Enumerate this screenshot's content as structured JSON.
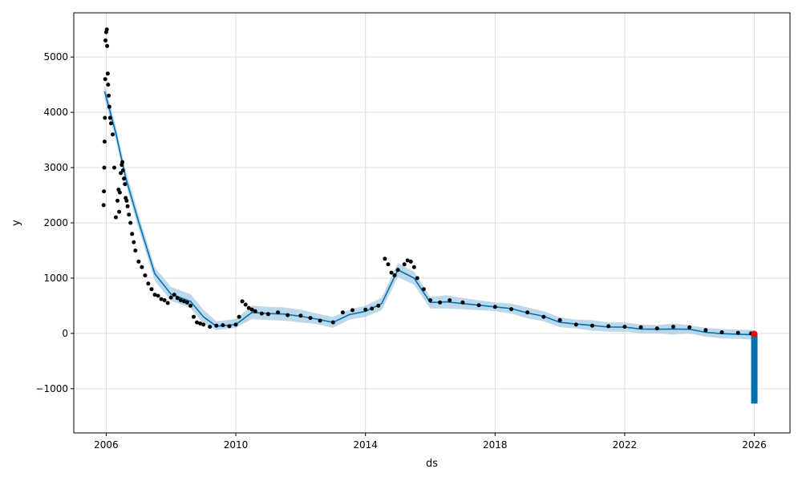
{
  "chart_data": {
    "type": "scatter",
    "title": "",
    "xlabel": "ds",
    "ylabel": "y",
    "xlim": [
      2005.0,
      2027.1
    ],
    "ylim": [
      -1800,
      5800
    ],
    "xticks": [
      2006,
      2010,
      2014,
      2018,
      2022,
      2026
    ],
    "xtick_labels": [
      "2006",
      "2010",
      "2014",
      "2018",
      "2022",
      "2026"
    ],
    "yticks": [
      -1000,
      0,
      1000,
      2000,
      3000,
      4000,
      5000
    ],
    "ytick_labels": [
      "−1000",
      "0",
      "1000",
      "2000",
      "3000",
      "4000",
      "5000"
    ],
    "grid": true,
    "colors": {
      "observed": "#000000",
      "forecast_line": "#0072B2",
      "uncertainty_band": "#A6CBE3",
      "highlight": "#FF0000",
      "grid": "#DDDDDD"
    },
    "series": [
      {
        "kind": "uncertainty-band",
        "x": [
          2005.95,
          2006.3,
          2006.6,
          2007.0,
          2007.5,
          2008.0,
          2008.6,
          2009.0,
          2009.4,
          2010.0,
          2010.5,
          2011.0,
          2011.5,
          2012.0,
          2012.5,
          2013.0,
          2013.5,
          2014.0,
          2014.5,
          2015.0,
          2015.5,
          2016.0,
          2016.5,
          2017.0,
          2017.5,
          2018.0,
          2018.5,
          2019.0,
          2019.5,
          2020.0,
          2020.5,
          2021.0,
          2021.5,
          2022.0,
          2022.5,
          2023.0,
          2023.5,
          2024.0,
          2024.5,
          2025.0,
          2025.5,
          2026.0
        ],
        "lower": [
          4250,
          3500,
          2700,
          1900,
          950,
          590,
          460,
          180,
          60,
          100,
          260,
          240,
          230,
          200,
          170,
          100,
          250,
          300,
          420,
          1020,
          880,
          450,
          450,
          440,
          420,
          400,
          360,
          270,
          220,
          110,
          90,
          50,
          30,
          30,
          0,
          0,
          -20,
          0,
          -60,
          -90,
          -100,
          -110
        ],
        "upper": [
          4500,
          3750,
          2950,
          2150,
          1200,
          840,
          710,
          430,
          220,
          260,
          500,
          480,
          470,
          430,
          360,
          300,
          430,
          500,
          650,
          1270,
          1120,
          660,
          690,
          640,
          600,
          560,
          540,
          470,
          400,
          290,
          250,
          240,
          200,
          200,
          160,
          150,
          180,
          150,
          100,
          80,
          70,
          60
        ]
      },
      {
        "kind": "forecast-line",
        "x": [
          2005.95,
          2006.3,
          2006.6,
          2007.0,
          2007.5,
          2008.0,
          2008.6,
          2009.0,
          2009.4,
          2010.0,
          2010.5,
          2011.0,
          2011.5,
          2012.0,
          2012.5,
          2013.0,
          2013.5,
          2014.0,
          2014.5,
          2015.0,
          2015.5,
          2016.0,
          2016.5,
          2017.0,
          2017.5,
          2018.0,
          2018.5,
          2019.0,
          2019.5,
          2020.0,
          2020.5,
          2021.0,
          2021.5,
          2022.0,
          2022.5,
          2023.0,
          2023.5,
          2024.0,
          2024.5,
          2025.0,
          2025.5,
          2026.0
        ],
        "y": [
          4380,
          3620,
          2820,
          2020,
          1080,
          710,
          580,
          300,
          130,
          160,
          380,
          360,
          350,
          310,
          260,
          200,
          340,
          400,
          540,
          1150,
          1000,
          560,
          570,
          540,
          510,
          480,
          450,
          370,
          310,
          200,
          170,
          145,
          115,
          115,
          80,
          75,
          80,
          75,
          20,
          -5,
          -15,
          -25
        ]
      },
      {
        "kind": "observed",
        "x": [
          2005.92,
          2005.93,
          2005.94,
          2005.95,
          2005.96,
          2005.97,
          2005.98,
          2006.0,
          2006.02,
          2006.03,
          2006.05,
          2006.06,
          2006.08,
          2006.1,
          2006.12,
          2006.15,
          2006.2,
          2006.25,
          2006.3,
          2006.35,
          2006.38,
          2006.4,
          2006.42,
          2006.45,
          2006.48,
          2006.5,
          2006.52,
          2006.55,
          2006.58,
          2006.6,
          2006.63,
          2006.66,
          2006.7,
          2006.75,
          2006.8,
          2006.85,
          2006.9,
          2007.0,
          2007.1,
          2007.2,
          2007.3,
          2007.4,
          2007.5,
          2007.6,
          2007.7,
          2007.8,
          2007.9,
          2008.0,
          2008.1,
          2008.2,
          2008.3,
          2008.4,
          2008.5,
          2008.6,
          2008.7,
          2008.8,
          2008.9,
          2009.0,
          2009.2,
          2009.4,
          2009.6,
          2009.8,
          2010.0,
          2010.1,
          2010.2,
          2010.3,
          2010.4,
          2010.5,
          2010.6,
          2010.8,
          2011.0,
          2011.3,
          2011.6,
          2012.0,
          2012.3,
          2012.6,
          2013.0,
          2013.3,
          2013.6,
          2014.0,
          2014.2,
          2014.4,
          2014.6,
          2014.7,
          2014.8,
          2014.9,
          2015.0,
          2015.2,
          2015.3,
          2015.4,
          2015.5,
          2015.6,
          2015.8,
          2016.0,
          2016.3,
          2016.6,
          2017.0,
          2017.5,
          2018.0,
          2018.5,
          2019.0,
          2019.5,
          2020.0,
          2020.5,
          2021.0,
          2021.5,
          2022.0,
          2022.5,
          2023.0,
          2023.5,
          2024.0,
          2024.5,
          2025.0,
          2025.5,
          2025.9
        ],
        "y": [
          2320,
          2570,
          3000,
          3470,
          3900,
          4600,
          5300,
          5450,
          5500,
          5200,
          4700,
          4500,
          4300,
          4100,
          3900,
          3800,
          3600,
          3000,
          2100,
          2400,
          2600,
          2200,
          2550,
          2900,
          3050,
          3100,
          2950,
          2800,
          2700,
          2450,
          2400,
          2300,
          2150,
          2000,
          1800,
          1650,
          1500,
          1300,
          1200,
          1050,
          900,
          800,
          700,
          680,
          620,
          600,
          550,
          650,
          700,
          640,
          600,
          580,
          560,
          500,
          300,
          200,
          180,
          160,
          120,
          140,
          150,
          130,
          160,
          300,
          580,
          520,
          460,
          430,
          400,
          360,
          350,
          380,
          330,
          320,
          280,
          230,
          200,
          380,
          420,
          430,
          450,
          500,
          1350,
          1250,
          1100,
          1050,
          1150,
          1250,
          1320,
          1300,
          1200,
          1000,
          800,
          600,
          560,
          600,
          560,
          510,
          480,
          440,
          380,
          300,
          240,
          160,
          140,
          130,
          120,
          110,
          90,
          120,
          110,
          60,
          20,
          10,
          0
        ]
      },
      {
        "kind": "forecast-bar",
        "x": [
          2026.0
        ],
        "y_from": [
          0
        ],
        "y_to": [
          -1270
        ]
      },
      {
        "kind": "highlight-point",
        "x": [
          2026.0
        ],
        "y": [
          -10
        ]
      }
    ]
  }
}
